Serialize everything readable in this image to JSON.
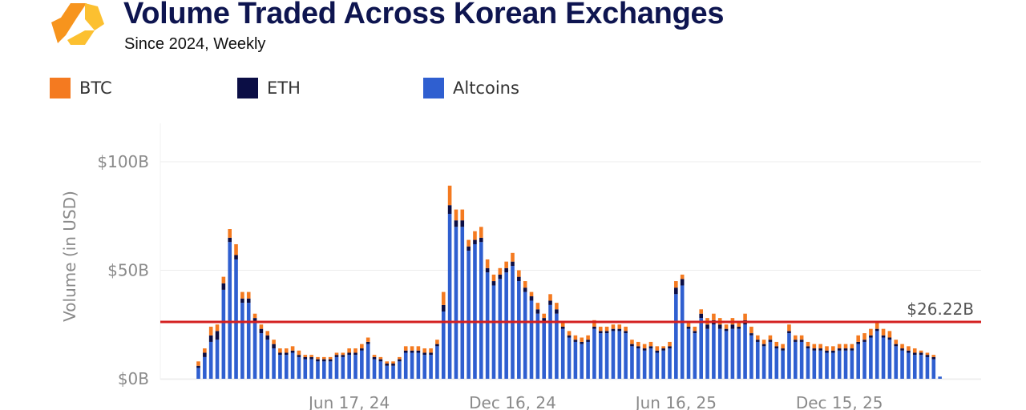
{
  "header": {
    "title": "Volume Traded Across Korean Exchanges",
    "subtitle": "Since 2024, Weekly"
  },
  "legend": [
    {
      "label": "BTC",
      "color": "#f47a20"
    },
    {
      "label": "ETH",
      "color": "#0b0e45"
    },
    {
      "label": "Altcoins",
      "color": "#2f5fd0"
    }
  ],
  "colors": {
    "reference_line": "#d42020",
    "grid": "#ececec",
    "axis_text": "#8a8a8a",
    "logo_orange": "#f7941d",
    "logo_gold": "#fcc030"
  },
  "chart_data": {
    "type": "bar",
    "stacked": true,
    "ylabel": "Volume (in USD)",
    "ylim": [
      0,
      110
    ],
    "y_unit": "billion USD",
    "yticks": [
      {
        "value": 0,
        "label": "$0B"
      },
      {
        "value": 50,
        "label": "$50B"
      },
      {
        "value": 100,
        "label": "$100B"
      }
    ],
    "xticks": [
      {
        "index": 24,
        "label": "Jun 17, 24"
      },
      {
        "index": 50,
        "label": "Dec 16, 24"
      },
      {
        "index": 76,
        "label": "Jun 16, 25"
      },
      {
        "index": 102,
        "label": "Dec 15, 25"
      }
    ],
    "reference_line": {
      "value": 26.22,
      "label": "$26.22B"
    },
    "series_names": [
      "Altcoins",
      "ETH",
      "BTC"
    ],
    "totals": [
      8,
      14,
      24,
      25,
      47,
      69,
      62,
      40,
      40,
      30,
      25,
      22,
      18,
      14,
      14,
      15,
      13,
      11,
      11,
      10,
      10,
      10,
      12,
      12,
      14,
      14,
      16,
      19,
      11,
      10,
      8,
      8,
      10,
      15,
      15,
      15,
      14,
      14,
      18,
      40,
      89,
      78,
      78,
      64,
      68,
      70,
      55,
      48,
      51,
      54,
      58,
      50,
      45,
      40,
      35,
      30,
      39,
      35,
      26,
      22,
      20,
      19,
      20,
      27,
      24,
      24,
      25,
      25,
      24,
      18,
      17,
      16,
      17,
      15,
      15,
      17,
      45,
      48,
      26,
      24,
      32,
      28,
      30,
      28,
      25,
      28,
      26,
      30,
      24,
      20,
      18,
      20,
      17,
      16,
      25,
      20,
      20,
      17,
      16,
      16,
      15,
      15,
      16,
      16,
      16,
      20,
      21,
      23,
      26,
      23,
      22,
      18,
      16,
      15,
      14,
      13,
      12,
      11,
      1
    ],
    "eth_values": [
      1,
      2,
      3,
      4,
      3,
      2,
      2,
      2,
      2,
      2,
      2,
      2,
      2,
      1,
      1,
      1,
      1,
      1,
      1,
      1,
      1,
      1,
      1,
      1,
      1,
      1,
      1,
      1,
      1,
      1,
      1,
      1,
      1,
      1,
      1,
      1,
      1,
      1,
      1,
      3,
      4,
      3,
      3,
      2,
      2,
      2,
      2,
      2,
      2,
      2,
      2,
      2,
      2,
      2,
      2,
      2,
      2,
      2,
      1,
      1,
      1,
      1,
      1,
      1,
      1,
      1,
      1,
      1,
      1,
      1,
      1,
      1,
      1,
      1,
      1,
      1,
      3,
      3,
      1,
      1,
      2,
      2,
      2,
      2,
      1,
      2,
      1,
      2,
      1,
      1,
      1,
      1,
      1,
      1,
      1,
      1,
      1,
      1,
      1,
      1,
      1,
      1,
      1,
      1,
      1,
      1,
      1,
      1,
      1,
      1,
      1,
      1,
      1,
      1,
      1,
      1,
      1,
      1,
      0
    ],
    "btc_values": [
      2,
      2,
      4,
      3,
      3,
      4,
      5,
      3,
      3,
      2,
      2,
      2,
      2,
      2,
      2,
      2,
      2,
      1,
      1,
      1,
      1,
      1,
      1,
      1,
      2,
      2,
      2,
      2,
      1,
      1,
      1,
      1,
      1,
      2,
      2,
      2,
      2,
      2,
      2,
      6,
      9,
      5,
      5,
      3,
      4,
      5,
      4,
      3,
      3,
      3,
      4,
      3,
      3,
      2,
      3,
      2,
      3,
      3,
      2,
      2,
      2,
      2,
      2,
      3,
      2,
      2,
      2,
      2,
      2,
      2,
      2,
      2,
      2,
      2,
      1,
      2,
      3,
      2,
      2,
      2,
      2,
      3,
      3,
      3,
      2,
      3,
      2,
      3,
      3,
      2,
      2,
      2,
      2,
      2,
      3,
      2,
      2,
      2,
      2,
      2,
      2,
      2,
      2,
      2,
      2,
      3,
      3,
      3,
      3,
      3,
      3,
      2,
      2,
      2,
      2,
      1,
      1,
      1,
      0
    ]
  }
}
